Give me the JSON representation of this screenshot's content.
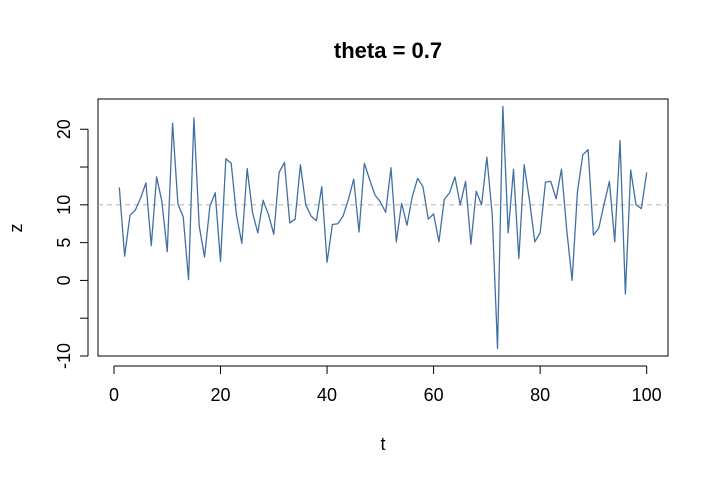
{
  "chart_data": {
    "type": "line",
    "title": "theta = 0.7",
    "xlabel": "t",
    "ylabel": "z",
    "xlim": [
      -3,
      104
    ],
    "ylim": [
      -10,
      24
    ],
    "xticks": [
      0,
      20,
      40,
      60,
      80,
      100
    ],
    "xtick_labels": [
      "0",
      "20",
      "40",
      "60",
      "80",
      "100"
    ],
    "yticks": [
      -10,
      -5,
      0,
      5,
      10,
      15,
      20
    ],
    "ytick_labels": [
      "-10",
      "",
      "0",
      "5",
      "10",
      "",
      "20"
    ],
    "grid": false,
    "legend": "none",
    "reference_line": {
      "y": 10,
      "style": "dashed",
      "color": "#bbbbbb"
    },
    "series": [
      {
        "color": "#4170a4",
        "x": [
          1,
          2,
          3,
          4,
          5,
          6,
          7,
          8,
          9,
          10,
          11,
          12,
          13,
          14,
          15,
          16,
          17,
          18,
          19,
          20,
          21,
          22,
          23,
          24,
          25,
          26,
          27,
          28,
          29,
          30,
          31,
          32,
          33,
          34,
          35,
          36,
          37,
          38,
          39,
          40,
          41,
          42,
          43,
          44,
          45,
          46,
          47,
          48,
          49,
          50,
          51,
          52,
          53,
          54,
          55,
          56,
          57,
          58,
          59,
          60,
          61,
          62,
          63,
          64,
          65,
          66,
          67,
          68,
          69,
          70,
          71,
          72,
          73,
          74,
          75,
          76,
          77,
          78,
          79,
          80,
          81,
          82,
          83,
          84,
          85,
          86,
          87,
          88,
          89,
          90,
          91,
          92,
          93,
          94,
          95,
          96,
          97,
          98,
          99,
          100
        ],
        "y": [
          12.3,
          3.2,
          8.6,
          9.3,
          10.9,
          12.9,
          4.6,
          13.7,
          10.4,
          3.8,
          20.8,
          10.1,
          8.4,
          0.1,
          21.5,
          7.2,
          3.1,
          9.8,
          11.6,
          2.5,
          16.1,
          15.5,
          8.6,
          4.9,
          14.8,
          9.0,
          6.3,
          10.6,
          8.7,
          6.1,
          14.3,
          15.6,
          7.6,
          8.1,
          15.3,
          10.0,
          8.5,
          7.9,
          12.4,
          2.4,
          7.4,
          7.5,
          8.5,
          10.7,
          13.4,
          6.4,
          15.5,
          13.3,
          11.3,
          10.4,
          9.0,
          14.9,
          5.1,
          10.2,
          7.3,
          11.1,
          13.5,
          12.4,
          8.1,
          8.8,
          5.1,
          10.7,
          11.6,
          13.7,
          10.0,
          13.1,
          4.8,
          11.8,
          10.0,
          16.3,
          8.7,
          -9.0,
          23.0,
          6.3,
          14.7,
          2.9,
          15.3,
          10.6,
          5.1,
          6.3,
          13.0,
          13.1,
          10.8,
          14.7,
          6.6,
          0.0,
          11.7,
          16.6,
          17.3,
          6.0,
          6.9,
          10.1,
          13.1,
          5.1,
          18.5,
          -1.8,
          14.6,
          10.0,
          9.5,
          14.3
        ]
      }
    ]
  }
}
